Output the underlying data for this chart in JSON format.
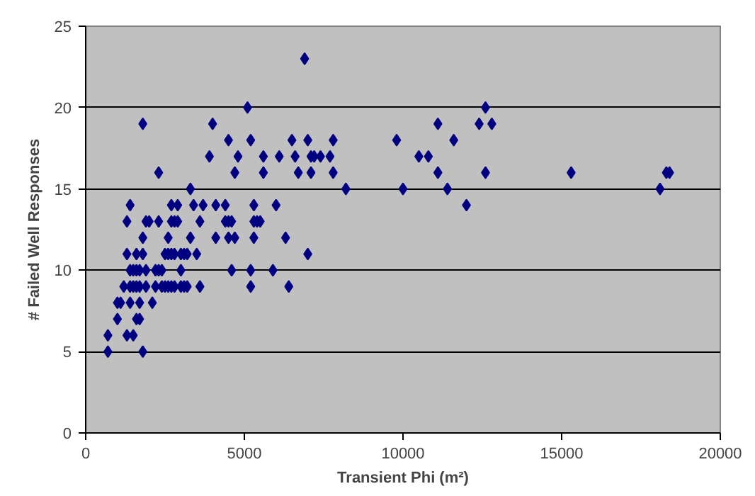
{
  "chart_data": {
    "type": "scatter",
    "xlabel": "Transient Phi (m²)",
    "ylabel": "# Failed Well Responses",
    "xlim": [
      0,
      20000
    ],
    "ylim": [
      0,
      25
    ],
    "xticks": [
      0,
      5000,
      10000,
      15000,
      20000
    ],
    "yticks": [
      0,
      5,
      10,
      15,
      20,
      25
    ],
    "grid": "y",
    "marker": "diamond",
    "series": [
      {
        "color": "#000080",
        "x": [
          6900,
          1800,
          4000,
          5100,
          12600,
          4500,
          5200,
          6500,
          7000,
          7800,
          9800,
          11600,
          11100,
          12400,
          12800,
          3900,
          4800,
          5600,
          6100,
          6600,
          7100,
          7200,
          7400,
          7700,
          10500,
          10800,
          2300,
          4700,
          5600,
          6700,
          7100,
          7800,
          11100,
          12600,
          15300,
          18300,
          18400,
          3300,
          8200,
          10000,
          11400,
          18100,
          1400,
          2700,
          2900,
          3400,
          3700,
          4100,
          4400,
          5300,
          6000,
          12000,
          1300,
          1900,
          2000,
          2300,
          2700,
          2800,
          2900,
          3600,
          4400,
          4500,
          4600,
          5300,
          5400,
          5500,
          1800,
          2600,
          3300,
          4100,
          4500,
          4700,
          5300,
          6300,
          1300,
          1600,
          1800,
          2500,
          2600,
          2700,
          2800,
          3000,
          3100,
          3200,
          3500,
          7000,
          1400,
          1500,
          1600,
          1700,
          1900,
          2200,
          2300,
          2400,
          3000,
          4600,
          5200,
          5900,
          1200,
          1400,
          1500,
          1600,
          1700,
          1900,
          2200,
          2400,
          2500,
          2600,
          2700,
          2800,
          3000,
          3100,
          3200,
          3600,
          5200,
          6400,
          1000,
          1100,
          1400,
          1700,
          2100,
          1000,
          1600,
          1700,
          700,
          1300,
          1500,
          700,
          1800
        ],
        "values": [
          23,
          19,
          19,
          20,
          20,
          18,
          18,
          18,
          18,
          18,
          18,
          18,
          19,
          19,
          19,
          17,
          17,
          17,
          17,
          17,
          17,
          17,
          17,
          17,
          17,
          17,
          16,
          16,
          16,
          16,
          16,
          16,
          16,
          16,
          16,
          16,
          16,
          15,
          15,
          15,
          15,
          15,
          14,
          14,
          14,
          14,
          14,
          14,
          14,
          14,
          14,
          14,
          13,
          13,
          13,
          13,
          13,
          13,
          13,
          13,
          13,
          13,
          13,
          13,
          13,
          13,
          12,
          12,
          12,
          12,
          12,
          12,
          12,
          12,
          11,
          11,
          11,
          11,
          11,
          11,
          11,
          11,
          11,
          11,
          11,
          11,
          10,
          10,
          10,
          10,
          10,
          10,
          10,
          10,
          10,
          10,
          10,
          10,
          9,
          9,
          9,
          9,
          9,
          9,
          9,
          9,
          9,
          9,
          9,
          9,
          9,
          9,
          9,
          9,
          9,
          9,
          8,
          8,
          8,
          8,
          8,
          7,
          7,
          7,
          6,
          6,
          6,
          5,
          5
        ]
      }
    ]
  }
}
